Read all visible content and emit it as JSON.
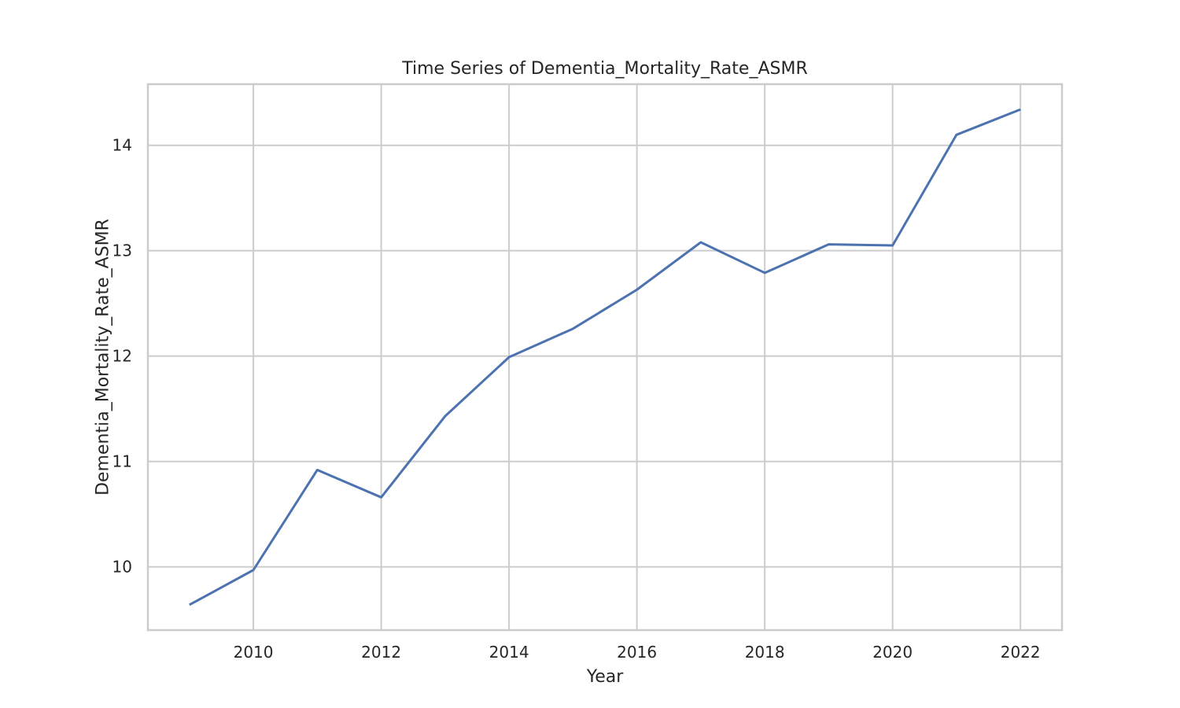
{
  "chart_data": {
    "type": "line",
    "title": "Time Series of Dementia_Mortality_Rate_ASMR",
    "xlabel": "Year",
    "ylabel": "Dementia_Mortality_Rate_ASMR",
    "x": [
      2009,
      2010,
      2011,
      2012,
      2013,
      2014,
      2015,
      2016,
      2017,
      2018,
      2019,
      2020,
      2021,
      2022
    ],
    "series": [
      {
        "values": [
          9.64,
          9.97,
          10.92,
          10.66,
          11.43,
          11.99,
          12.26,
          12.63,
          13.08,
          12.79,
          13.06,
          13.05,
          14.1,
          14.34
        ],
        "color": "#4c72b0"
      }
    ],
    "xlim": [
      2008.35,
      2022.65
    ],
    "ylim": [
      9.4,
      14.58
    ],
    "xticks": [
      "2010",
      "2012",
      "2014",
      "2016",
      "2018",
      "2020",
      "2022"
    ],
    "yticks": [
      "10",
      "11",
      "12",
      "13",
      "14"
    ],
    "grid": true,
    "legend": "none"
  }
}
